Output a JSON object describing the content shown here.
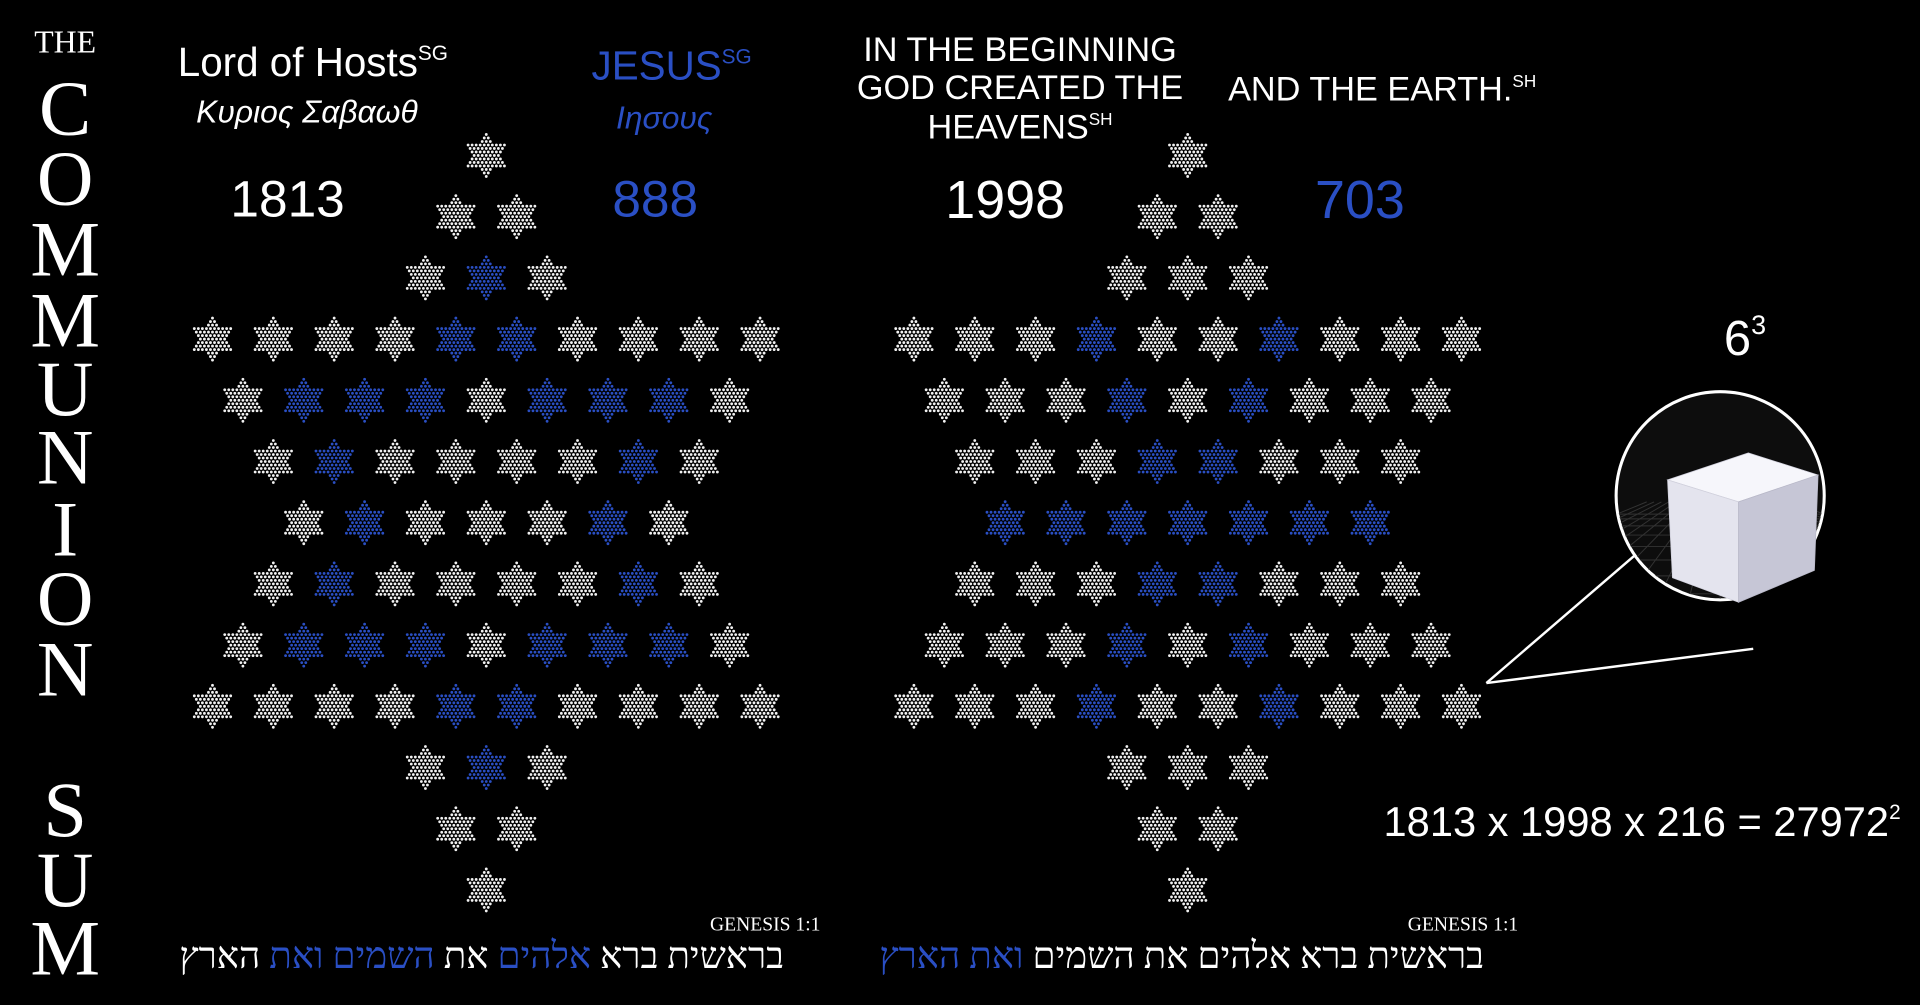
{
  "side_title": [
    "THE",
    "C",
    "O",
    "M",
    "M",
    "U",
    "N",
    "I",
    "O",
    "N",
    "S",
    "U",
    "M"
  ],
  "left_panel": {
    "name": "Lord of Hosts",
    "name_sup": "SG",
    "greek": "Κυριος Σαβαωθ",
    "number": 1813,
    "blue_name": "JESUS",
    "blue_sup": "SG",
    "blue_greek": "Ιησους",
    "blue_number": 888,
    "reference": "GENESIS 1:1",
    "hebrew": [
      {
        "text": "בראשית",
        "color": "#ffffff"
      },
      {
        "text": "ברא",
        "color": "#ffffff"
      },
      {
        "text": "אלהים",
        "color": "#2a4fc4"
      },
      {
        "text": "את",
        "color": "#ffffff"
      },
      {
        "text": "השמים",
        "color": "#2a4fc4"
      },
      {
        "text": "ואת",
        "color": "#2a4fc4"
      },
      {
        "text": "הארץ",
        "color": "#ffffff"
      }
    ]
  },
  "right_panel": {
    "phrase": [
      "IN THE BEGINNING",
      "GOD CREATED THE",
      "HEAVENS"
    ],
    "phrase_sup": "SH",
    "number": 1998,
    "blue_phrase": "AND THE EARTH.",
    "blue_sup": "SH",
    "blue_number": 703,
    "reference": "GENESIS 1:1",
    "hebrew": [
      {
        "text": "בראשית",
        "color": "#ffffff"
      },
      {
        "text": "ברא",
        "color": "#ffffff"
      },
      {
        "text": "אלהים",
        "color": "#ffffff"
      },
      {
        "text": "את",
        "color": "#ffffff"
      },
      {
        "text": "השמים",
        "color": "#ffffff"
      },
      {
        "text": "ואת",
        "color": "#2a4fc4"
      },
      {
        "text": "הארץ",
        "color": "#2a4fc4"
      }
    ]
  },
  "cube": {
    "base": "6",
    "exponent": "3"
  },
  "equation": {
    "text": "1813 x 1998 x 216 = 27972",
    "exponent": "2"
  }
}
